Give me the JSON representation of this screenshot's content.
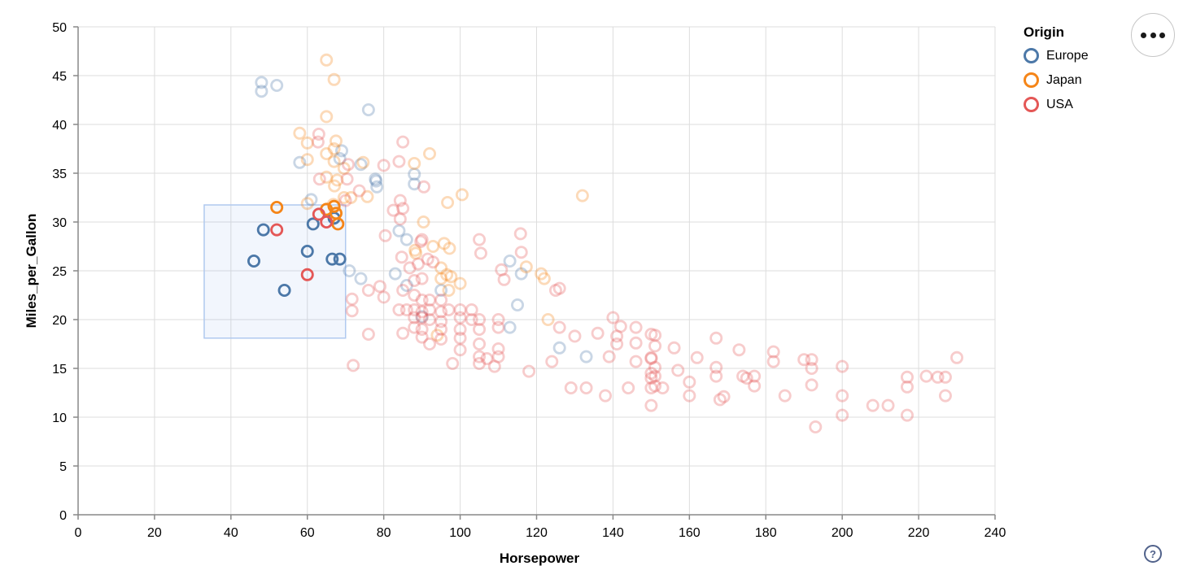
{
  "background_color": "#ffffff",
  "legend": {
    "title": "Origin",
    "items": [
      {
        "label": "Europe",
        "color": "#4c78a8"
      },
      {
        "label": "Japan",
        "color": "#f58518"
      },
      {
        "label": "USA",
        "color": "#e45756"
      }
    ]
  },
  "actions_menu": {
    "tooltip": "ellipsis menu"
  },
  "help": {
    "label": "?"
  },
  "chart_data": {
    "type": "scatter",
    "title": "",
    "xlabel": "Horsepower",
    "ylabel": "Miles_per_Gallon",
    "xlim": [
      0,
      240
    ],
    "ylim": [
      0,
      50
    ],
    "x_ticks": [
      0,
      20,
      40,
      60,
      80,
      100,
      120,
      140,
      160,
      180,
      200,
      220,
      240
    ],
    "y_ticks": [
      0,
      5,
      10,
      15,
      20,
      25,
      30,
      35,
      40,
      45,
      50
    ],
    "grid": true,
    "legend_position": "top-right",
    "mark": "open-circle",
    "unselected_opacity": 0.3,
    "grid_color": "#dddddd",
    "axis_color": "#888888",
    "brush": {
      "x": [
        33,
        70
      ],
      "y": [
        18.1,
        31.75
      ],
      "fill": "#6e9ee8",
      "fill_opacity": 0.09,
      "stroke": "#b0c9ef"
    },
    "series": [
      {
        "name": "Europe",
        "color": "#4c78a8",
        "points": [
          [
            46,
            26,
            1
          ],
          [
            48.5,
            29.2,
            1
          ],
          [
            54,
            23,
            1
          ],
          [
            60,
            27,
            1
          ],
          [
            61.5,
            29.8,
            1
          ],
          [
            67,
            30.4,
            1
          ],
          [
            66.5,
            26.2,
            1
          ],
          [
            68.5,
            26.2,
            1
          ],
          [
            48,
            44.3
          ],
          [
            48,
            43.4
          ],
          [
            52,
            44
          ],
          [
            76,
            41.5
          ],
          [
            58,
            36.1
          ],
          [
            69,
            37.3
          ],
          [
            68.5,
            36.5
          ],
          [
            74,
            35.9
          ],
          [
            78,
            34.2
          ],
          [
            88,
            34.9
          ],
          [
            88,
            33.9
          ],
          [
            77.8,
            34.4
          ],
          [
            78.2,
            33.6
          ],
          [
            61,
            32.3
          ],
          [
            84,
            29.1
          ],
          [
            86,
            28.2
          ],
          [
            71,
            25
          ],
          [
            74,
            24.2
          ],
          [
            83,
            24.7
          ],
          [
            86,
            23.5
          ],
          [
            90,
            20.3
          ],
          [
            95,
            23
          ],
          [
            113,
            26
          ],
          [
            116,
            24.7
          ],
          [
            115,
            21.5
          ],
          [
            113,
            19.2
          ],
          [
            126,
            17.1
          ],
          [
            133,
            16.2
          ]
        ]
      },
      {
        "name": "Japan",
        "color": "#f58518",
        "points": [
          [
            52,
            31.5,
            1
          ],
          [
            65,
            31.3,
            1
          ],
          [
            67,
            31.6,
            1
          ],
          [
            67.5,
            30.9,
            1
          ],
          [
            68,
            29.8,
            1
          ],
          [
            65,
            46.6
          ],
          [
            67,
            44.6
          ],
          [
            65,
            40.8
          ],
          [
            58,
            39.1
          ],
          [
            60,
            38.1
          ],
          [
            67.5,
            38.3
          ],
          [
            67,
            37.5
          ],
          [
            65,
            37
          ],
          [
            92,
            37
          ],
          [
            88,
            36
          ],
          [
            60,
            36.4
          ],
          [
            67,
            36.2
          ],
          [
            74.6,
            36.1
          ],
          [
            69.6,
            35.5
          ],
          [
            65,
            34.6
          ],
          [
            67.8,
            34.3
          ],
          [
            67.1,
            33.7
          ],
          [
            60,
            31.9
          ],
          [
            66.8,
            31.8
          ],
          [
            69.6,
            32.5
          ],
          [
            71.4,
            32.5
          ],
          [
            75.7,
            32.6
          ],
          [
            96.7,
            32
          ],
          [
            100.5,
            32.8
          ],
          [
            132,
            32.7
          ],
          [
            90.4,
            30
          ],
          [
            92.9,
            27.5
          ],
          [
            95.8,
            27.8
          ],
          [
            97.2,
            27.3
          ],
          [
            88.2,
            27.1
          ],
          [
            88.4,
            26.8
          ],
          [
            95,
            25.3
          ],
          [
            96.5,
            24.6
          ],
          [
            97.6,
            24.4
          ],
          [
            95,
            24.2
          ],
          [
            97,
            23
          ],
          [
            100,
            23.7
          ],
          [
            117.3,
            25.4
          ],
          [
            121.2,
            24.7
          ],
          [
            122,
            24.2
          ],
          [
            123,
            20
          ],
          [
            94,
            18.4
          ]
        ]
      },
      {
        "name": "USA",
        "color": "#e45756",
        "points": [
          [
            52,
            29.2,
            1
          ],
          [
            60,
            24.6,
            1
          ],
          [
            63,
            30.8,
            1
          ],
          [
            65,
            30,
            1
          ],
          [
            63,
            39
          ],
          [
            62.8,
            38.2
          ],
          [
            85,
            38.2
          ],
          [
            84,
            36.2
          ],
          [
            80,
            35.8
          ],
          [
            70.7,
            35.9
          ],
          [
            90.5,
            33.6
          ],
          [
            63.2,
            34.4
          ],
          [
            70.4,
            34.4
          ],
          [
            73.6,
            33.2
          ],
          [
            70,
            32.2
          ],
          [
            84.3,
            32.2
          ],
          [
            82.5,
            31.2
          ],
          [
            85,
            31.4
          ],
          [
            84.3,
            30.3
          ],
          [
            80.4,
            28.6
          ],
          [
            89.7,
            28
          ],
          [
            90,
            28.2
          ],
          [
            105,
            28.2
          ],
          [
            115.8,
            28.8
          ],
          [
            116,
            26.9
          ],
          [
            105.4,
            26.8
          ],
          [
            91.5,
            26.2
          ],
          [
            84.7,
            26.4
          ],
          [
            86.8,
            25.3
          ],
          [
            89,
            25.7
          ],
          [
            92.9,
            25.9
          ],
          [
            110.8,
            25.1
          ],
          [
            111.5,
            24.1
          ],
          [
            125,
            23
          ],
          [
            79,
            23.4
          ],
          [
            80,
            22.3
          ],
          [
            76,
            23
          ],
          [
            71.7,
            22.1
          ],
          [
            71.7,
            20.9
          ],
          [
            88,
            24
          ],
          [
            90,
            24.2
          ],
          [
            85,
            23
          ],
          [
            88,
            22.5
          ],
          [
            90,
            22
          ],
          [
            92,
            22
          ],
          [
            95,
            22
          ],
          [
            84,
            21
          ],
          [
            86,
            21
          ],
          [
            88,
            21
          ],
          [
            90,
            20.8
          ],
          [
            92,
            21
          ],
          [
            95,
            20.8
          ],
          [
            97,
            21
          ],
          [
            100,
            21
          ],
          [
            103,
            21
          ],
          [
            88,
            20.2
          ],
          [
            90,
            20.2
          ],
          [
            92,
            20
          ],
          [
            95,
            19.8
          ],
          [
            100,
            20.2
          ],
          [
            103,
            20
          ],
          [
            105,
            20
          ],
          [
            110,
            20
          ],
          [
            88,
            19.2
          ],
          [
            90,
            19
          ],
          [
            95,
            19
          ],
          [
            100,
            19
          ],
          [
            105,
            19
          ],
          [
            110,
            19.2
          ],
          [
            90,
            18.2
          ],
          [
            95,
            18
          ],
          [
            100,
            18.1
          ],
          [
            105,
            17.5
          ],
          [
            110,
            17
          ],
          [
            85,
            18.6
          ],
          [
            92,
            17.5
          ],
          [
            107,
            16
          ],
          [
            105,
            16.2
          ],
          [
            100,
            16.9
          ],
          [
            110,
            16.2
          ],
          [
            98,
            15.5
          ],
          [
            105,
            15.5
          ],
          [
            72,
            15.3
          ],
          [
            76,
            18.5
          ],
          [
            109,
            15.2
          ],
          [
            118,
            14.7
          ],
          [
            124,
            15.7
          ],
          [
            126,
            19.2
          ],
          [
            126,
            23.2
          ],
          [
            140,
            20.2
          ],
          [
            142,
            19.3
          ],
          [
            146,
            19.2
          ],
          [
            150,
            18.5
          ],
          [
            130,
            18.3
          ],
          [
            136,
            18.6
          ],
          [
            139,
            16.2
          ],
          [
            141,
            18.3
          ],
          [
            141,
            17.5
          ],
          [
            146,
            17.6
          ],
          [
            146,
            15.7
          ],
          [
            151,
            18.4
          ],
          [
            151,
            17.3
          ],
          [
            150,
            16.1
          ],
          [
            150,
            16
          ],
          [
            151,
            15.1
          ],
          [
            150,
            14.5
          ],
          [
            151,
            14.2
          ],
          [
            150,
            14
          ],
          [
            151,
            13.2
          ],
          [
            150,
            13
          ],
          [
            156,
            17.1
          ],
          [
            157,
            14.8
          ],
          [
            160,
            13.6
          ],
          [
            162,
            16.1
          ],
          [
            150,
            11.2
          ],
          [
            167,
            18.1
          ],
          [
            167,
            15.1
          ],
          [
            167,
            14.2
          ],
          [
            169,
            12.1
          ],
          [
            173,
            16.9
          ],
          [
            174,
            14.2
          ],
          [
            175,
            14
          ],
          [
            177,
            14.2
          ],
          [
            177,
            13.2
          ],
          [
            182,
            16.7
          ],
          [
            182,
            15.7
          ],
          [
            185,
            12.2
          ],
          [
            129,
            13
          ],
          [
            133,
            13
          ],
          [
            138,
            12.2
          ],
          [
            144,
            13
          ],
          [
            153,
            13
          ],
          [
            160,
            12.2
          ],
          [
            168,
            11.8
          ],
          [
            190,
            15.9
          ],
          [
            192,
            15.9
          ],
          [
            192,
            15
          ],
          [
            192,
            13.3
          ],
          [
            200,
            15.2
          ],
          [
            200,
            12.2
          ],
          [
            193,
            9
          ],
          [
            200,
            10.2
          ],
          [
            208,
            11.2
          ],
          [
            212,
            11.2
          ],
          [
            217,
            14.1
          ],
          [
            217,
            13.1
          ],
          [
            217,
            10.2
          ],
          [
            222,
            14.2
          ],
          [
            225,
            14.1
          ],
          [
            227,
            14.1
          ],
          [
            227,
            12.2
          ],
          [
            230,
            16.1
          ]
        ]
      }
    ]
  }
}
